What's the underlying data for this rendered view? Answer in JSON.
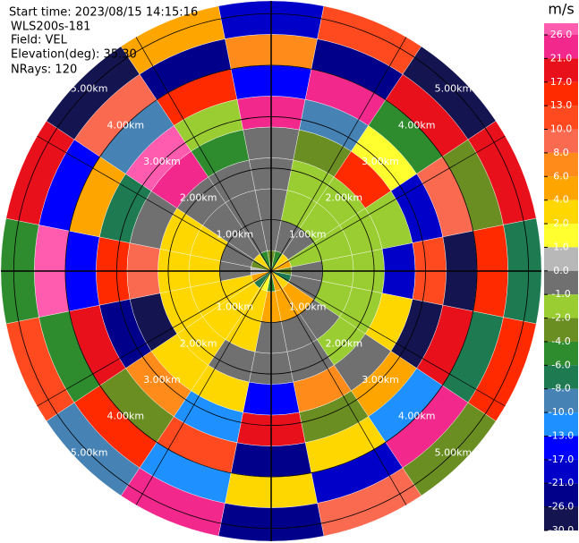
{
  "chart_data": {
    "type": "ppi",
    "header": [
      "Start time: 2023/08/15 14:15:16",
      "WLS200s-181",
      "Field: VEL",
      "Elevation(deg): 35.30",
      "NRays: 120"
    ],
    "rlim": [
      0,
      5.25
    ],
    "rticks": [
      {
        "value": 1,
        "label": "1.00km"
      },
      {
        "value": 2,
        "label": "2.00km"
      },
      {
        "value": 3,
        "label": "3.00km"
      },
      {
        "value": 4,
        "label": "4.00km"
      },
      {
        "value": 5,
        "label": "5.00km"
      }
    ],
    "gates_km": [
      0,
      0.4,
      1.0,
      1.6,
      2.2,
      2.8,
      3.4,
      4.0,
      4.6,
      5.25
    ],
    "values": [
      [
        -3,
        -5,
        4,
        6,
        -2,
        -7,
        3,
        5,
        -4,
        2,
        -6,
        5,
        1,
        -3,
        4,
        -5
      ],
      [
        -0.5,
        -0.5,
        -0.5,
        -1.5,
        -0.5,
        -0.5,
        5,
        6,
        5,
        4,
        3,
        3,
        -0.5,
        -0.5,
        -0.5,
        -0.5
      ],
      [
        -0.5,
        -1.5,
        -1.5,
        -1.5,
        -1.5,
        -1.5,
        -0.5,
        -0.5,
        -0.5,
        3,
        3,
        3,
        3,
        3,
        -0.5,
        -0.5
      ],
      [
        -0.5,
        -1.5,
        -1.5,
        -1.5,
        -1.5,
        -1.5,
        -1.5,
        -0.5,
        -0.5,
        -0.5,
        3,
        3,
        3,
        3,
        -0.5,
        -0.5
      ],
      [
        -0.5,
        -2.5,
        15,
        -1.5,
        -20,
        3,
        -0.5,
        7,
        -15,
        3,
        2.5,
        -28,
        9,
        -0.5,
        23,
        -5
      ],
      [
        22,
        -9,
        1.5,
        -18,
        11,
        -27,
        5,
        -3,
        19,
        -12,
        7,
        -24,
        14,
        -7,
        27,
        -1.5
      ],
      [
        -14,
        24,
        -5,
        9,
        -29,
        18,
        -11,
        2.5,
        -22,
        12,
        -3,
        20,
        -16,
        6,
        -8,
        15
      ],
      [
        8,
        -23,
        19,
        -2.5,
        14,
        -6,
        25,
        -19,
        3,
        -11,
        17,
        -4.5,
        28,
        -13,
        10,
        -25
      ],
      [
        -17,
        11,
        -28,
        21,
        -7,
        16,
        -2.5,
        9,
        -21,
        26,
        -9,
        13,
        -5,
        18,
        -26,
        4.5
      ]
    ],
    "colorbar": {
      "label": "m/s",
      "ticks": [
        {
          "value": 26,
          "label": "26.0"
        },
        {
          "value": 21,
          "label": "21.0"
        },
        {
          "value": 17,
          "label": "17.0"
        },
        {
          "value": 13,
          "label": "13.0"
        },
        {
          "value": 10,
          "label": "10.0"
        },
        {
          "value": 8,
          "label": "8.0"
        },
        {
          "value": 6,
          "label": "6.0"
        },
        {
          "value": 4,
          "label": "4.0"
        },
        {
          "value": 2,
          "label": "2.0"
        },
        {
          "value": 1,
          "label": "1.0"
        },
        {
          "value": 0,
          "label": "0.0"
        },
        {
          "value": -1,
          "label": "-1.0"
        },
        {
          "value": -2,
          "label": "-2.0"
        },
        {
          "value": -4,
          "label": "-4.0"
        },
        {
          "value": -6,
          "label": "-6.0"
        },
        {
          "value": -8,
          "label": "-8.0"
        },
        {
          "value": -10,
          "label": "-10.0"
        },
        {
          "value": -13,
          "label": "-13.0"
        },
        {
          "value": -17,
          "label": "-17.0"
        },
        {
          "value": -21,
          "label": "-21.0"
        },
        {
          "value": -26,
          "label": "-26.0"
        },
        {
          "value": -30,
          "label": "-30.0"
        }
      ],
      "colors": [
        "#ff5cb0",
        "#f2288c",
        "#e8101a",
        "#ff2a00",
        "#ff4a20",
        "#fa6a50",
        "#ff8c1a",
        "#ffa500",
        "#ffd700",
        "#ffff30",
        "#b8b8b8",
        "#707070",
        "#9acd32",
        "#6b8e23",
        "#2e8b2e",
        "#1e7a50",
        "#4682b4",
        "#1e90ff",
        "#0000ff",
        "#0000c8",
        "#00008b",
        "#141450"
      ]
    }
  }
}
